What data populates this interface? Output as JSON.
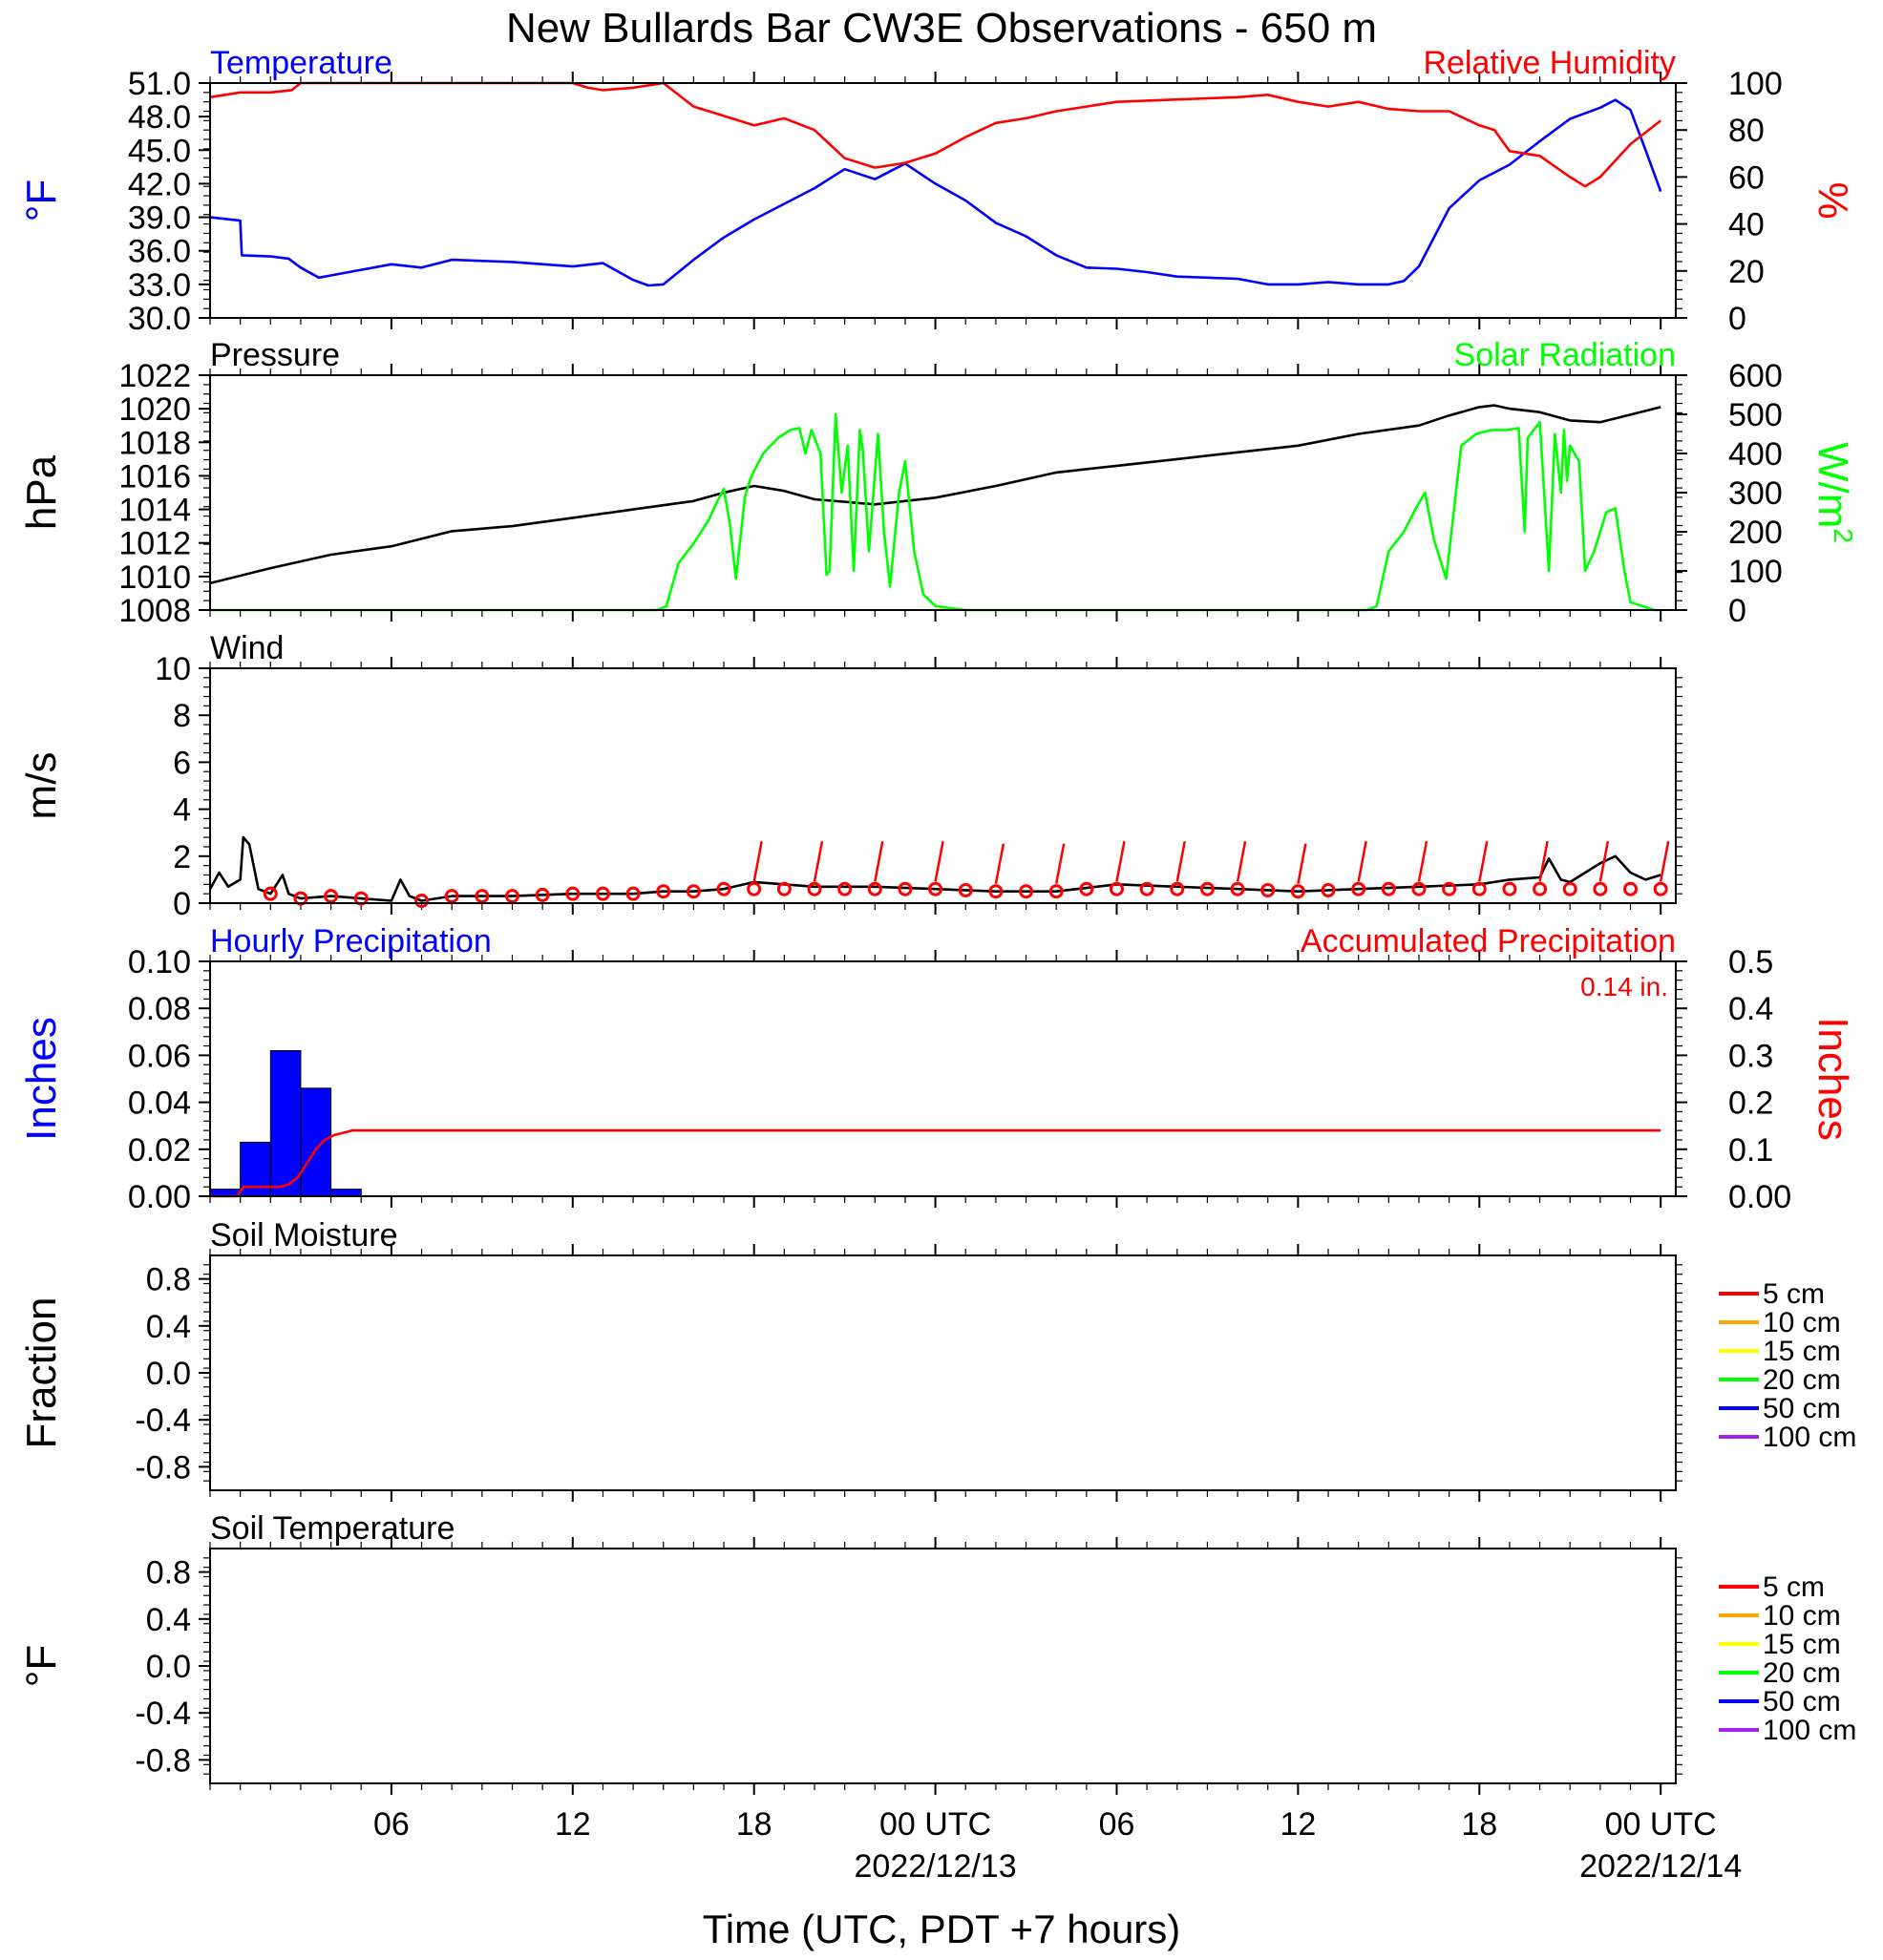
{
  "title": "New Bullards Bar CW3E Observations - 650 m",
  "xaxis": {
    "label": "Time (UTC, PDT +7 hours)",
    "ticks": [
      {
        "h": 6,
        "label": "06"
      },
      {
        "h": 12,
        "label": "12"
      },
      {
        "h": 18,
        "label": "18"
      },
      {
        "h": 24,
        "label": "00 UTC",
        "date": "2022/12/13"
      },
      {
        "h": 30,
        "label": "06"
      },
      {
        "h": 36,
        "label": "12"
      },
      {
        "h": 42,
        "label": "18"
      },
      {
        "h": 48,
        "label": "00 UTC",
        "date": "2022/12/14"
      }
    ]
  },
  "colors": {
    "temperature": "#0000ff",
    "humidity": "#ff0000",
    "pressure": "#000000",
    "solar": "#00ff00",
    "wind": "#000000",
    "wind_barb": "#ff0000",
    "hourly_precip": "#0000ff",
    "accum_precip": "#ff0000"
  },
  "chart_data": [
    {
      "id": "temp_rh",
      "type": "line",
      "left_title": "Temperature",
      "right_title": "Relative Humidity",
      "ylabel_left": "°F",
      "ylabel_right": "%",
      "ylim_left": [
        30,
        51
      ],
      "yticks_left": [
        "30.0",
        "33.0",
        "36.0",
        "39.0",
        "42.0",
        "45.0",
        "48.0",
        "51.0"
      ],
      "ylim_right": [
        0,
        100
      ],
      "yticks_right": [
        "0",
        "20",
        "40",
        "60",
        "80",
        "100"
      ],
      "series": [
        {
          "name": "Temperature",
          "axis": "left",
          "color": "#0000ff",
          "x": [
            0,
            1,
            1.05,
            2,
            2.6,
            3,
            3.6,
            4,
            6,
            7,
            8,
            10,
            12,
            13,
            14,
            14.5,
            15,
            16,
            17,
            18,
            19,
            20,
            21,
            22,
            23,
            24,
            25,
            26,
            27,
            28,
            29,
            30,
            31,
            32,
            33,
            34,
            35,
            36,
            37,
            38,
            39,
            39.5,
            40,
            41,
            42,
            43,
            44,
            45,
            46,
            46.5,
            47,
            47.5,
            48
          ],
          "y": [
            39.0,
            38.7,
            35.6,
            35.5,
            35.3,
            34.5,
            33.6,
            33.8,
            34.8,
            34.5,
            35.2,
            35.0,
            34.6,
            34.9,
            33.4,
            32.9,
            33.0,
            35.2,
            37.2,
            38.8,
            40.2,
            41.6,
            43.3,
            42.4,
            43.8,
            42.0,
            40.5,
            38.5,
            37.3,
            35.6,
            34.5,
            34.4,
            34.1,
            33.7,
            33.6,
            33.5,
            33.0,
            33.0,
            33.2,
            33.0,
            33.0,
            33.3,
            34.6,
            39.8,
            42.3,
            43.7,
            45.8,
            47.8,
            48.8,
            49.5,
            48.6,
            45.0,
            41.3
          ]
        },
        {
          "name": "Relative Humidity",
          "axis": "right",
          "color": "#ff0000",
          "x": [
            0,
            1,
            2,
            2.7,
            3,
            5,
            7,
            10,
            12,
            12.5,
            13,
            14,
            15,
            16,
            17,
            18,
            19,
            20,
            20.5,
            21,
            22,
            23,
            24,
            25,
            26,
            27,
            28,
            29,
            30,
            32,
            34,
            35,
            36,
            37,
            38,
            39,
            40,
            41,
            42,
            42.5,
            43,
            44,
            45,
            45.5,
            46,
            47,
            48
          ],
          "y": [
            94,
            96,
            96,
            97,
            100,
            100,
            100,
            100,
            100,
            98,
            97,
            98,
            100,
            90,
            86,
            82,
            85,
            80,
            74,
            68,
            64,
            66,
            70,
            77,
            83,
            85,
            88,
            90,
            92,
            93,
            94,
            95,
            92,
            90,
            92,
            89,
            88,
            88,
            82,
            80,
            71,
            69,
            60,
            56,
            60,
            74,
            84
          ]
        }
      ]
    },
    {
      "id": "pressure_solar",
      "type": "line",
      "left_title": "Pressure",
      "right_title": "Solar Radiation",
      "ylabel_left": "hPa",
      "ylabel_right": "W/m",
      "ylabel_right_sup": "2",
      "ylim_left": [
        1008,
        1022
      ],
      "yticks_left": [
        "1008",
        "1010",
        "1012",
        "1014",
        "1016",
        "1018",
        "1020",
        "1022"
      ],
      "ylim_right": [
        0,
        600
      ],
      "yticks_right": [
        "0",
        "100",
        "200",
        "300",
        "400",
        "500",
        "600"
      ],
      "series": [
        {
          "name": "Pressure",
          "axis": "left",
          "color": "#000000",
          "x": [
            0,
            2,
            4,
            6,
            8,
            10,
            12,
            14,
            16,
            17,
            18,
            19,
            20,
            22,
            24,
            26,
            28,
            30,
            32,
            34,
            36,
            38,
            40,
            41,
            42,
            42.5,
            43,
            44,
            45,
            46,
            48
          ],
          "y": [
            1009.6,
            1010.5,
            1011.3,
            1011.8,
            1012.7,
            1013.0,
            1013.5,
            1014.0,
            1014.5,
            1015.0,
            1015.4,
            1015.1,
            1014.6,
            1014.3,
            1014.7,
            1015.4,
            1016.2,
            1016.6,
            1017.0,
            1017.4,
            1017.8,
            1018.5,
            1019.0,
            1019.6,
            1020.1,
            1020.2,
            1020.0,
            1019.8,
            1019.3,
            1019.2,
            1020.1
          ]
        },
        {
          "name": "Solar Radiation",
          "axis": "right",
          "color": "#00ff00",
          "x": [
            0,
            14.8,
            15.1,
            15.5,
            16,
            16.5,
            16.8,
            17.0,
            17.2,
            17.4,
            17.7,
            17.9,
            18.3,
            18.8,
            19.2,
            19.5,
            19.7,
            19.9,
            20.2,
            20.4,
            20.5,
            20.7,
            20.9,
            21.1,
            21.3,
            21.5,
            21.6,
            21.8,
            22.1,
            22.3,
            22.5,
            22.8,
            23.0,
            23.3,
            23.6,
            24,
            25,
            38.3,
            38.6,
            39.0,
            39.5,
            39.9,
            40.2,
            40.5,
            40.9,
            41.4,
            41.9,
            42.4,
            42.9,
            43.3,
            43.5,
            43.6,
            44.0,
            44.3,
            44.5,
            44.7,
            44.8,
            44.9,
            45.0,
            45.3,
            45.5,
            45.8,
            46.2,
            46.5,
            46.8,
            47.0,
            47.4,
            47.8,
            48
          ],
          "y": [
            0,
            0,
            10,
            120,
            170,
            230,
            280,
            310,
            220,
            80,
            290,
            340,
            400,
            440,
            460,
            465,
            400,
            460,
            400,
            90,
            100,
            500,
            300,
            420,
            100,
            460,
            410,
            150,
            450,
            200,
            60,
            300,
            380,
            150,
            40,
            10,
            0,
            0,
            10,
            150,
            200,
            260,
            300,
            180,
            80,
            420,
            450,
            460,
            460,
            465,
            200,
            440,
            480,
            100,
            450,
            300,
            460,
            330,
            420,
            380,
            100,
            150,
            250,
            260,
            100,
            20,
            10,
            0,
            0
          ]
        }
      ]
    },
    {
      "id": "wind",
      "type": "line",
      "left_title": "Wind",
      "ylabel_left": "m/s",
      "ylim_left": [
        0,
        10
      ],
      "yticks_left": [
        "0",
        "2",
        "4",
        "6",
        "8",
        "10"
      ],
      "series": [
        {
          "name": "Wind",
          "axis": "left",
          "color": "#000000",
          "x": [
            0,
            0.3,
            0.6,
            1.0,
            1.1,
            1.3,
            1.6,
            2.0,
            2.4,
            2.6,
            3,
            4,
            5,
            6,
            6.3,
            6.6,
            7,
            8,
            10,
            12,
            14,
            15,
            16,
            17,
            18,
            19,
            20,
            22,
            24,
            26,
            28,
            30,
            32,
            34,
            36,
            38,
            40,
            42,
            43,
            44,
            44.3,
            44.7,
            45,
            45.5,
            46,
            46.5,
            47,
            47.5,
            48
          ],
          "y": [
            0.6,
            1.3,
            0.7,
            1.0,
            2.8,
            2.5,
            0.6,
            0.4,
            1.2,
            0.4,
            0.2,
            0.3,
            0.2,
            0.1,
            1.0,
            0.3,
            0.1,
            0.3,
            0.3,
            0.4,
            0.4,
            0.5,
            0.5,
            0.6,
            0.9,
            0.8,
            0.7,
            0.7,
            0.6,
            0.5,
            0.5,
            0.8,
            0.7,
            0.6,
            0.5,
            0.6,
            0.7,
            0.8,
            1.0,
            1.1,
            1.9,
            1.0,
            0.9,
            1.3,
            1.7,
            2.0,
            1.3,
            1.0,
            1.2
          ]
        }
      ],
      "barb_hours": [
        2,
        3,
        4,
        5,
        7,
        8,
        9,
        10,
        11,
        12,
        13,
        14,
        15,
        16,
        17,
        18,
        19,
        20,
        21,
        22,
        23,
        24,
        25,
        26,
        27,
        28,
        29,
        30,
        31,
        32,
        33,
        34,
        35,
        36,
        37,
        38,
        39,
        40,
        41,
        42,
        43,
        44,
        45,
        46,
        47,
        48
      ]
    },
    {
      "id": "precip",
      "type": "bar",
      "left_title": "Hourly Precipitation",
      "right_title": "Accumulated Precipitation",
      "annotation": "0.14 in.",
      "ylabel_left": "Inches",
      "ylabel_right": "Inches",
      "ylim_left": [
        0,
        0.1
      ],
      "yticks_left": [
        "0.00",
        "0.02",
        "0.04",
        "0.06",
        "0.08",
        "0.10"
      ],
      "ylim_right": [
        0,
        0.5
      ],
      "yticks_right": [
        "0.00",
        "0.1",
        "0.2",
        "0.3",
        "0.4",
        "0.5"
      ],
      "bars": {
        "name": "Hourly Precipitation",
        "x_start": [
          0,
          1,
          2,
          3,
          4,
          5
        ],
        "values": [
          0.003,
          0.023,
          0.062,
          0.046,
          0.003,
          0.0
        ]
      },
      "series": [
        {
          "name": "Accumulated Precipitation",
          "axis": "right",
          "color": "#ff0000",
          "x": [
            0,
            0.9,
            1.1,
            2,
            2.3,
            2.6,
            2.9,
            3.2,
            3.5,
            3.8,
            4.1,
            4.4,
            4.7,
            5,
            6,
            48
          ],
          "y": [
            0,
            0,
            0.02,
            0.02,
            0.02,
            0.025,
            0.04,
            0.07,
            0.1,
            0.12,
            0.13,
            0.135,
            0.14,
            0.14,
            0.14,
            0.14
          ]
        }
      ]
    },
    {
      "id": "soil_moisture",
      "type": "line",
      "left_title": "Soil Moisture",
      "ylabel_left": "Fraction",
      "ylim_left": [
        -1,
        1
      ],
      "yticks_left": [
        "-0.8",
        "-0.4",
        "0.0",
        "0.4",
        "0.8"
      ],
      "yticks_left_values": [
        -0.8,
        -0.4,
        0.0,
        0.4,
        0.8
      ],
      "legend": [
        {
          "label": "5 cm",
          "color": "#ff0000"
        },
        {
          "label": "10 cm",
          "color": "#ffa500"
        },
        {
          "label": "15 cm",
          "color": "#ffff00"
        },
        {
          "label": "20 cm",
          "color": "#00ff00"
        },
        {
          "label": "50 cm",
          "color": "#0000ff"
        },
        {
          "label": "100 cm",
          "color": "#a020f0"
        }
      ],
      "series": []
    },
    {
      "id": "soil_temp",
      "type": "line",
      "left_title": "Soil Temperature",
      "ylabel_left": "°F",
      "ylim_left": [
        -1,
        1
      ],
      "yticks_left": [
        "-0.8",
        "-0.4",
        "0.0",
        "0.4",
        "0.8"
      ],
      "yticks_left_values": [
        -0.8,
        -0.4,
        0.0,
        0.4,
        0.8
      ],
      "legend": [
        {
          "label": "5 cm",
          "color": "#ff0000"
        },
        {
          "label": "10 cm",
          "color": "#ffa500"
        },
        {
          "label": "15 cm",
          "color": "#ffff00"
        },
        {
          "label": "20 cm",
          "color": "#00ff00"
        },
        {
          "label": "50 cm",
          "color": "#0000ff"
        },
        {
          "label": "100 cm",
          "color": "#a020f0"
        }
      ],
      "series": []
    }
  ]
}
